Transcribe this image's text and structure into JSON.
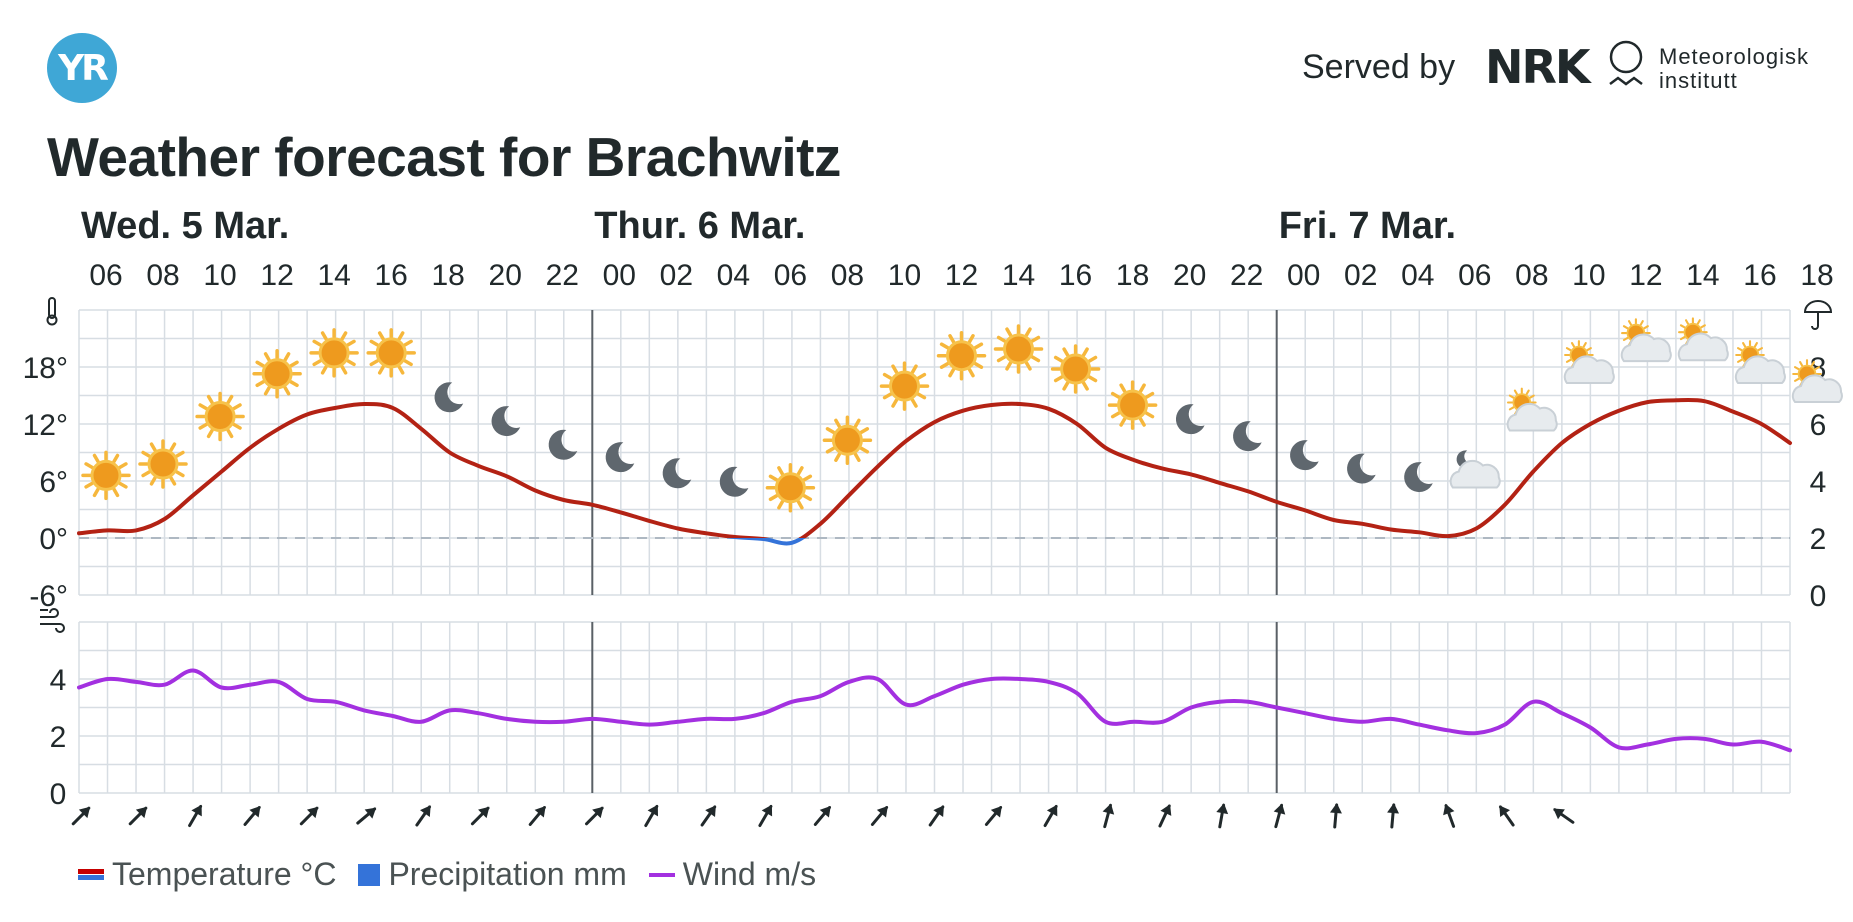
{
  "header": {
    "logo_text": "YR",
    "served_by": "Served by",
    "nrk_text": "NRK",
    "met_line1": "Meteorologisk",
    "met_line2": "institutt",
    "title": "Weather forecast for Brachwitz"
  },
  "legend": {
    "temperature": "Temperature °C",
    "precipitation": "Precipitation mm",
    "wind": "Wind m/s"
  },
  "colors": {
    "temp_line": "#b32214",
    "temp_below_zero": "#3473d9",
    "wind_line": "#a330e0",
    "grid": "#d7dde3",
    "day_divider": "#5a6066",
    "yr_blue": "#3fa7d6"
  },
  "chart_data": [
    {
      "type": "line",
      "name": "temperature-precipitation",
      "days": [
        "Wed. 5 Mar.",
        "Thur. 6 Mar.",
        "Fri. 7 Mar."
      ],
      "x": [
        "06",
        "07",
        "08",
        "09",
        "10",
        "11",
        "12",
        "13",
        "14",
        "15",
        "16",
        "17",
        "18",
        "19",
        "20",
        "21",
        "22",
        "23",
        "00",
        "01",
        "02",
        "03",
        "04",
        "05",
        "06",
        "07",
        "08",
        "09",
        "10",
        "11",
        "12",
        "13",
        "14",
        "15",
        "16",
        "17",
        "18",
        "19",
        "20",
        "21",
        "22",
        "23",
        "00",
        "01",
        "02",
        "03",
        "04",
        "05",
        "06",
        "07",
        "08",
        "09",
        "10",
        "11",
        "12",
        "13",
        "14",
        "15",
        "16",
        "17",
        "18"
      ],
      "x_tick_labels": [
        "06",
        "08",
        "10",
        "12",
        "14",
        "16",
        "18",
        "20",
        "22",
        "00",
        "02",
        "04",
        "06",
        "08",
        "10",
        "12",
        "14",
        "16",
        "18",
        "20",
        "22",
        "00",
        "02",
        "04",
        "06",
        "08",
        "10",
        "12",
        "14",
        "16",
        "18"
      ],
      "series": [
        {
          "values": [
            0.5,
            0.8,
            0.8,
            2.0,
            4.5,
            7.0,
            9.5,
            11.5,
            13.0,
            13.7,
            14.1,
            13.7,
            11.5,
            9.0,
            7.6,
            6.5,
            5.0,
            4.0,
            3.5,
            2.7,
            1.8,
            1.0,
            0.5,
            0.1,
            -0.1,
            -0.5,
            1.5,
            4.5,
            7.5,
            10.2,
            12.2,
            13.4,
            14.0,
            14.1,
            13.6,
            12.0,
            9.5,
            8.2,
            7.3,
            6.7,
            5.8,
            4.9,
            3.8,
            2.9,
            1.9,
            1.5,
            0.9,
            0.6,
            0.2,
            1.0,
            3.5,
            7.0,
            10.0,
            12.0,
            13.4,
            14.3,
            14.5,
            14.4,
            13.3,
            12.0,
            10.0
          ]
        }
      ],
      "y_left_ticks": [
        "-6°",
        "0°",
        "6°",
        "12°",
        "18°"
      ],
      "y_left_range": [
        -6,
        24
      ],
      "y_right_ticks": [
        "0",
        "2",
        "4",
        "6",
        "8"
      ],
      "y_right_range": [
        0,
        10
      ],
      "precipitation": [],
      "weather_icons": [
        "sun",
        "sun",
        "sun",
        "sun",
        "sun",
        "sun",
        "moon",
        "moon",
        "moon",
        "moon",
        "moon",
        "moon",
        "sun",
        "sun",
        "sun",
        "sun",
        "sun",
        "sun",
        "sun",
        "moon",
        "moon",
        "moon",
        "moon",
        "moon",
        "cloud-moon",
        "cloud-sun",
        "cloud-sun",
        "cloud-sun",
        "cloud-sun",
        "cloud-sun",
        "cloud-sun"
      ],
      "grid": true
    },
    {
      "type": "line",
      "name": "wind",
      "x": [
        "06",
        "07",
        "08",
        "09",
        "10",
        "11",
        "12",
        "13",
        "14",
        "15",
        "16",
        "17",
        "18",
        "19",
        "20",
        "21",
        "22",
        "23",
        "00",
        "01",
        "02",
        "03",
        "04",
        "05",
        "06",
        "07",
        "08",
        "09",
        "10",
        "11",
        "12",
        "13",
        "14",
        "15",
        "16",
        "17",
        "18",
        "19",
        "20",
        "21",
        "22",
        "23",
        "00",
        "01",
        "02",
        "03",
        "04",
        "05",
        "06",
        "07",
        "08",
        "09",
        "10",
        "11",
        "12",
        "13",
        "14",
        "15",
        "16",
        "17",
        "18"
      ],
      "series": [
        {
          "values": [
            3.7,
            4.0,
            3.9,
            3.8,
            4.3,
            3.7,
            3.8,
            3.9,
            3.3,
            3.2,
            2.9,
            2.7,
            2.5,
            2.9,
            2.8,
            2.6,
            2.5,
            2.5,
            2.6,
            2.5,
            2.4,
            2.5,
            2.6,
            2.6,
            2.8,
            3.2,
            3.4,
            3.9,
            4.0,
            3.1,
            3.4,
            3.8,
            4.0,
            4.0,
            3.9,
            3.5,
            2.5,
            2.5,
            2.5,
            3.0,
            3.2,
            3.2,
            3.0,
            2.8,
            2.6,
            2.5,
            2.6,
            2.4,
            2.2,
            2.1,
            2.4,
            3.2,
            2.8,
            2.3,
            1.6,
            1.7,
            1.9,
            1.9,
            1.7,
            1.8,
            1.5
          ]
        }
      ],
      "y_ticks": [
        "0",
        "2",
        "4"
      ],
      "y_range": [
        0,
        6
      ],
      "wind_direction_deg": [
        45,
        45,
        30,
        40,
        45,
        50,
        35,
        45,
        40,
        45,
        30,
        35,
        30,
        40,
        40,
        35,
        40,
        30,
        15,
        25,
        10,
        15,
        5,
        5,
        -20,
        -35,
        -55
      ],
      "grid": true
    }
  ]
}
